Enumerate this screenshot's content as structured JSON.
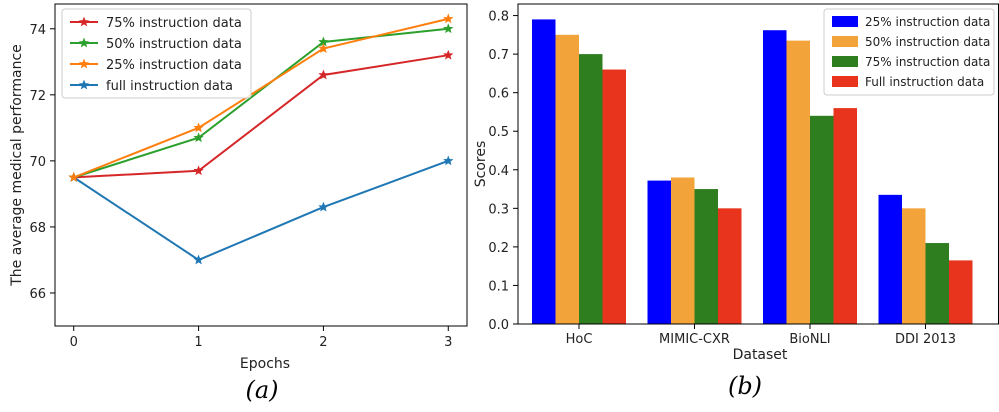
{
  "chart_data": [
    {
      "type": "line",
      "panel_label": "(a)",
      "xlabel": "Epochs",
      "ylabel": "The average medical performance",
      "x": [
        0,
        1,
        2,
        3
      ],
      "xticks": [
        "0",
        "1",
        "2",
        "3"
      ],
      "yticks": [
        "66",
        "68",
        "70",
        "72",
        "74"
      ],
      "xlim": [
        -0.15,
        3.15
      ],
      "ylim": [
        65.0,
        74.75
      ],
      "grid": false,
      "legend_position": "top-left",
      "series": [
        {
          "name": "75% instruction data",
          "values": [
            69.5,
            69.7,
            72.6,
            73.2
          ],
          "color": "#d62728",
          "marker": "star"
        },
        {
          "name": "50% instruction data",
          "values": [
            69.5,
            70.7,
            73.6,
            74.0
          ],
          "color": "#2ca02c",
          "marker": "star"
        },
        {
          "name": "25% instruction data",
          "values": [
            69.5,
            71.0,
            73.4,
            74.3
          ],
          "color": "#ff7f0e",
          "marker": "star"
        },
        {
          "name": "full instruction data",
          "values": [
            69.5,
            67.0,
            68.6,
            70.0
          ],
          "color": "#1f77b4",
          "marker": "star"
        }
      ]
    },
    {
      "type": "bar",
      "panel_label": "(b)",
      "xlabel": "Dataset",
      "ylabel": "Scores",
      "categories": [
        "HoC",
        "MIMIC-CXR",
        "BioNLI",
        "DDI 2013"
      ],
      "yticks": [
        "0.0",
        "0.1",
        "0.2",
        "0.3",
        "0.4",
        "0.5",
        "0.6",
        "0.7",
        "0.8"
      ],
      "ylim": [
        0,
        0.83
      ],
      "grid": false,
      "legend_position": "top-right",
      "series": [
        {
          "name": "25% instruction data",
          "values": [
            0.79,
            0.372,
            0.762,
            0.335
          ],
          "color": "#0000ff"
        },
        {
          "name": "50% instruction data",
          "values": [
            0.75,
            0.38,
            0.735,
            0.3
          ],
          "color": "#f2a33a"
        },
        {
          "name": "75% instruction data",
          "values": [
            0.7,
            0.35,
            0.54,
            0.21
          ],
          "color": "#2e7d1f"
        },
        {
          "name": "Full instruction data",
          "values": [
            0.66,
            0.3,
            0.56,
            0.165
          ],
          "color": "#e8341c"
        }
      ]
    }
  ]
}
